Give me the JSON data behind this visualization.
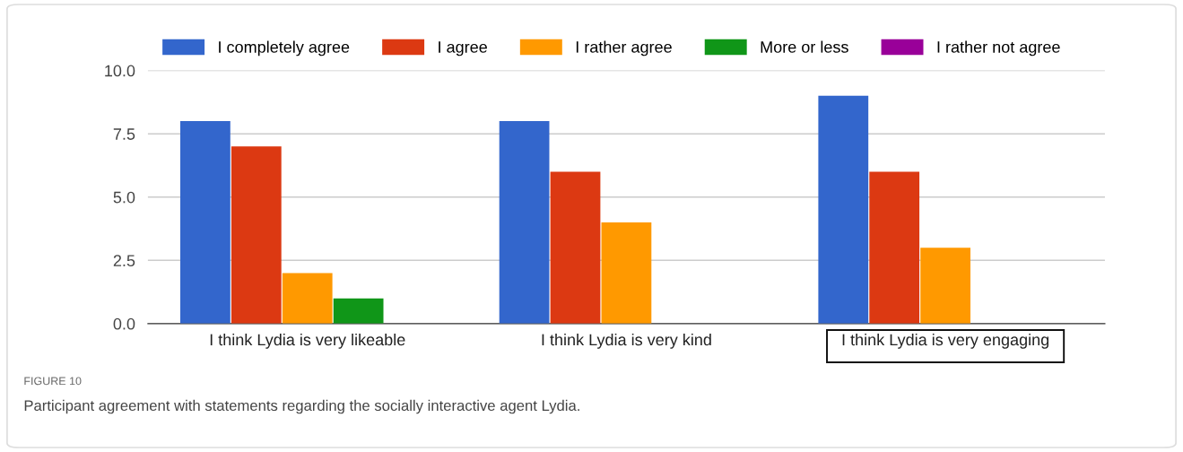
{
  "chart_data": {
    "type": "bar",
    "categories": [
      "I think Lydia is very likeable",
      "I think Lydia is very kind",
      "I think Lydia is very engaging"
    ],
    "series": [
      {
        "name": "I completely agree",
        "color": "#3366cc",
        "values": [
          8,
          8,
          9
        ]
      },
      {
        "name": "I agree",
        "color": "#dc3912",
        "values": [
          7,
          6,
          6
        ]
      },
      {
        "name": "I rather agree",
        "color": "#ff9900",
        "values": [
          2,
          4,
          3
        ]
      },
      {
        "name": "More or less",
        "color": "#109618",
        "values": [
          1,
          0,
          0
        ]
      },
      {
        "name": "I rather not agree",
        "color": "#990099",
        "values": [
          0,
          0,
          0
        ]
      }
    ],
    "ylim": [
      0,
      10
    ],
    "yticks": [
      {
        "value": 0,
        "label": "0.0"
      },
      {
        "value": 2.5,
        "label": "2.5"
      },
      {
        "value": 5,
        "label": "5.0"
      },
      {
        "value": 7.5,
        "label": "7.5"
      },
      {
        "value": 10,
        "label": "10.0"
      }
    ],
    "grid": "y",
    "legend": "top",
    "annotations": [
      "FIGURE 10",
      "Participant agreement with statements regarding the socially interactive agent Lydia."
    ]
  }
}
